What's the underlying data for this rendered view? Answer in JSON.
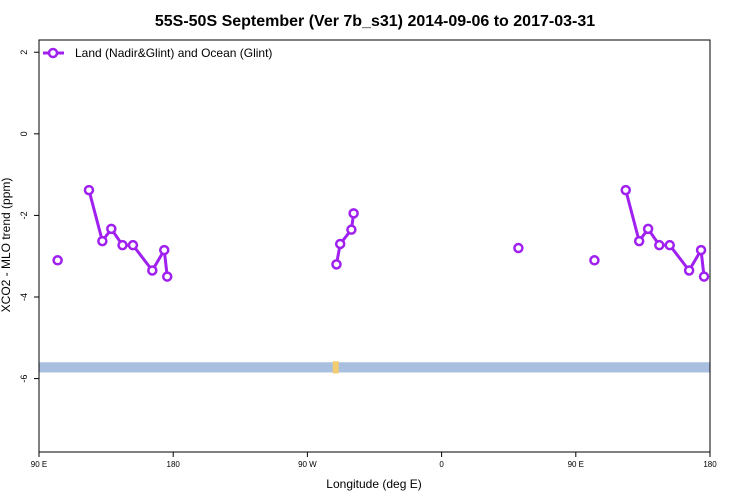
{
  "chart_data": {
    "type": "line",
    "title": "55S-50S September (Ver 7b_s31)   2014-09-06 to 2017-03-31",
    "xlabel": "Longitude (deg E)",
    "ylabel": "XCO2 - MLO trend (ppm)",
    "x_ticks": [
      {
        "value": 90,
        "label": "90 E"
      },
      {
        "value": 180,
        "label": "180"
      },
      {
        "value": 270,
        "label": "90 W"
      },
      {
        "value": 360,
        "label": "0"
      },
      {
        "value": 450,
        "label": "90 E"
      },
      {
        "value": 540,
        "label": "180"
      }
    ],
    "y_ticks": [
      {
        "value": 2,
        "label": "2"
      },
      {
        "value": 0,
        "label": "0"
      },
      {
        "value": -2,
        "label": "-2"
      },
      {
        "value": -4,
        "label": "-4"
      },
      {
        "value": -6,
        "label": "-6"
      }
    ],
    "xlim": [
      90,
      540
    ],
    "ylim": [
      -7.8,
      2.3
    ],
    "grid": false,
    "legend_position": "top-left",
    "series": [
      {
        "name": "Land (Nadir&Glint) and Ocean (Glint)",
        "color": "#a020f0",
        "segments": [
          [
            [
              102.5,
              -3.1
            ]
          ],
          [
            [
              123.5,
              -1.38
            ],
            [
              132.5,
              -2.63
            ],
            [
              138.5,
              -2.33
            ],
            [
              146,
              -2.73
            ],
            [
              153,
              -2.73
            ],
            [
              166,
              -3.35
            ],
            [
              174,
              -2.85
            ],
            [
              176,
              -3.5
            ]
          ],
          [
            [
              289.5,
              -3.2
            ],
            [
              292,
              -2.7
            ],
            [
              299.5,
              -2.35
            ],
            [
              301,
              -1.95
            ]
          ],
          [
            [
              411.5,
              -2.8
            ]
          ],
          [
            [
              462.5,
              -3.1
            ]
          ],
          [
            [
              483.5,
              -1.38
            ],
            [
              492.5,
              -2.63
            ],
            [
              498.5,
              -2.33
            ],
            [
              506,
              -2.73
            ],
            [
              513,
              -2.73
            ],
            [
              526,
              -3.35
            ],
            [
              534,
              -2.85
            ],
            [
              536,
              -3.5
            ]
          ]
        ]
      }
    ],
    "map_strip": {
      "y_range": [
        -5.85,
        -5.6
      ],
      "ocean_color": "#a8bfe0",
      "land_color": "#f4cc70",
      "land_spans": [
        [
          287,
          291
        ]
      ]
    }
  }
}
